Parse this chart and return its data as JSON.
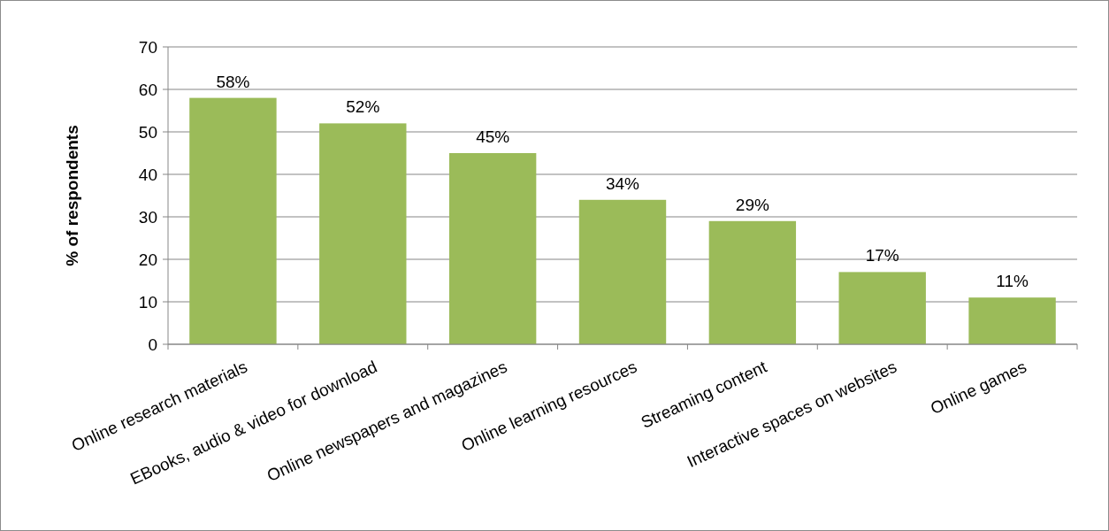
{
  "chart_data": {
    "type": "bar",
    "ylabel": "% of respondents",
    "categories": [
      "Online research materials",
      "EBooks, audio & video for download",
      "Online newspapers and magazines",
      "Online learning resources",
      "Streaming content",
      "Interactive spaces on websites",
      "Online games"
    ],
    "values": [
      58,
      52,
      45,
      34,
      29,
      17,
      11
    ],
    "value_labels": [
      "58%",
      "52%",
      "45%",
      "34%",
      "29%",
      "17%",
      "11%"
    ],
    "color": "#9bbb59",
    "ylim": [
      0,
      70
    ],
    "yticks": [
      0,
      10,
      20,
      30,
      40,
      50,
      60,
      70
    ],
    "grid": "y"
  }
}
